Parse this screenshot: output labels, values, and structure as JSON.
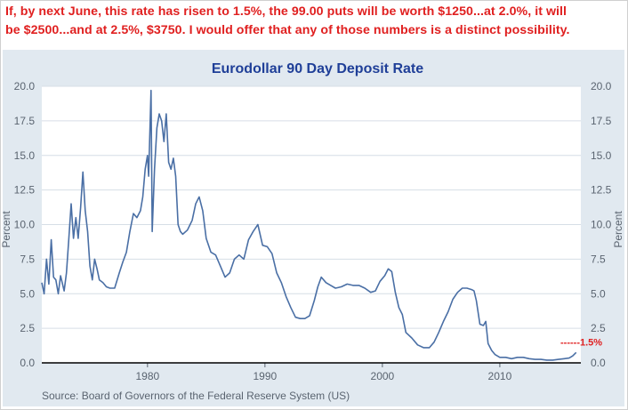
{
  "header": {
    "line1": "If, by next June, this rate has risen to 1.5%, the 99.00 puts will be worth $1250...at 2.0%, it will",
    "line2": "be $2500...and at 2.5%, $3750. I would offer that any of those numbers is a distinct possibility."
  },
  "colors": {
    "header_text": "#e02020",
    "panel_bg": "#e1e9f0",
    "plot_bg": "#ffffff",
    "series_line": "#4a6fa5",
    "title": "#1f3f98",
    "annotation": "#e02020"
  },
  "chart_data": {
    "type": "line",
    "title": "Eurodollar 90 Day Deposit Rate",
    "ylabel_left": "Percent",
    "ylabel_right": "Percent",
    "source": "Source: Board of Governors of the Federal Reserve System (US)",
    "xlim": [
      1971.0,
      2016.9
    ],
    "ylim": [
      0,
      20
    ],
    "yticks": [
      "0.0",
      "2.5",
      "5.0",
      "7.5",
      "10.0",
      "12.5",
      "15.0",
      "17.5",
      "20.0"
    ],
    "ytick_values": [
      0,
      2.5,
      5,
      7.5,
      10,
      12.5,
      15,
      17.5,
      20
    ],
    "xticks": [
      "1980",
      "1990",
      "2000",
      "2010"
    ],
    "xtick_values": [
      1980,
      1990,
      2000,
      2010
    ],
    "grid": "horizontal",
    "annotation": {
      "label": "------1.5%",
      "y": 1.5
    },
    "series": [
      {
        "x": [
          1971.0,
          1971.2,
          1971.4,
          1971.6,
          1971.8,
          1972.0,
          1972.2,
          1972.4,
          1972.6,
          1972.9,
          1973.1,
          1973.3,
          1973.5,
          1973.7,
          1973.9,
          1974.1,
          1974.3,
          1974.5,
          1974.7,
          1974.9,
          1975.1,
          1975.3,
          1975.5,
          1975.7,
          1975.9,
          1976.2,
          1976.5,
          1976.8,
          1977.2,
          1977.6,
          1977.9,
          1978.2,
          1978.5,
          1978.8,
          1979.1,
          1979.4,
          1979.6,
          1979.8,
          1980.0,
          1980.1,
          1980.3,
          1980.4,
          1980.6,
          1980.8,
          1981.0,
          1981.2,
          1981.4,
          1981.6,
          1981.8,
          1982.0,
          1982.2,
          1982.4,
          1982.6,
          1982.8,
          1983.0,
          1983.4,
          1983.8,
          1984.1,
          1984.4,
          1984.7,
          1985.0,
          1985.4,
          1985.8,
          1986.2,
          1986.6,
          1987.0,
          1987.4,
          1987.8,
          1988.2,
          1988.6,
          1989.0,
          1989.4,
          1989.8,
          1990.2,
          1990.6,
          1991.0,
          1991.4,
          1991.8,
          1992.2,
          1992.6,
          1993.0,
          1993.4,
          1993.8,
          1994.2,
          1994.5,
          1994.8,
          1995.2,
          1995.6,
          1996.0,
          1996.5,
          1997.0,
          1997.5,
          1998.0,
          1998.5,
          1999.0,
          1999.4,
          1999.8,
          2000.2,
          2000.5,
          2000.8,
          2001.1,
          2001.4,
          2001.7,
          2002.0,
          2002.5,
          2003.0,
          2003.5,
          2004.0,
          2004.4,
          2004.8,
          2005.2,
          2005.6,
          2006.0,
          2006.4,
          2006.8,
          2007.2,
          2007.6,
          2007.8,
          2008.0,
          2008.3,
          2008.6,
          2008.8,
          2009.0,
          2009.3,
          2009.6,
          2010.0,
          2010.5,
          2011.0,
          2011.5,
          2012.0,
          2012.5,
          2013.0,
          2013.5,
          2014.0,
          2014.5,
          2015.0,
          2015.5,
          2015.9,
          2016.2,
          2016.5
        ],
        "y": [
          5.8,
          5.0,
          7.5,
          5.7,
          8.9,
          6.2,
          6.0,
          5.0,
          6.3,
          5.2,
          6.5,
          9.0,
          11.5,
          9.0,
          10.5,
          9.0,
          11.2,
          13.8,
          11.0,
          9.5,
          7.0,
          6.0,
          7.5,
          6.8,
          6.0,
          5.8,
          5.5,
          5.4,
          5.4,
          6.5,
          7.3,
          8.0,
          9.5,
          10.8,
          10.5,
          11.0,
          12.0,
          14.0,
          15.0,
          13.5,
          19.7,
          9.5,
          14.0,
          17.0,
          18.0,
          17.5,
          16.0,
          18.0,
          14.5,
          14.0,
          14.8,
          13.5,
          10.0,
          9.5,
          9.3,
          9.6,
          10.3,
          11.5,
          12.0,
          11.0,
          9.0,
          8.0,
          7.8,
          7.0,
          6.2,
          6.5,
          7.5,
          7.8,
          7.5,
          8.9,
          9.5,
          10.0,
          8.5,
          8.4,
          7.9,
          6.5,
          5.8,
          4.8,
          4.0,
          3.3,
          3.2,
          3.2,
          3.4,
          4.5,
          5.5,
          6.2,
          5.8,
          5.6,
          5.4,
          5.5,
          5.7,
          5.6,
          5.6,
          5.4,
          5.1,
          5.2,
          5.9,
          6.3,
          6.8,
          6.6,
          5.1,
          4.0,
          3.5,
          2.2,
          1.8,
          1.3,
          1.1,
          1.1,
          1.5,
          2.2,
          3.0,
          3.7,
          4.6,
          5.1,
          5.4,
          5.4,
          5.3,
          5.2,
          4.5,
          2.8,
          2.7,
          3.0,
          1.4,
          0.9,
          0.6,
          0.4,
          0.4,
          0.3,
          0.4,
          0.4,
          0.3,
          0.25,
          0.25,
          0.2,
          0.2,
          0.25,
          0.3,
          0.35,
          0.5,
          0.75
        ]
      }
    ]
  }
}
